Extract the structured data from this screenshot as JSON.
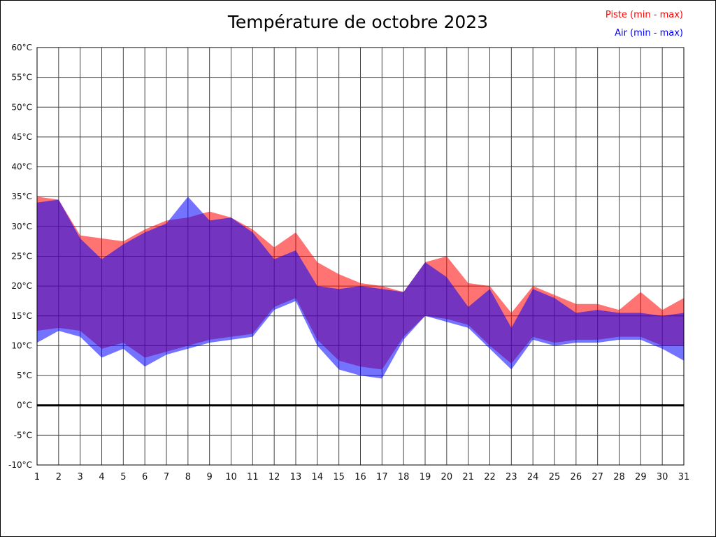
{
  "title": "Température de octobre 2023",
  "legend": {
    "piste_label": "Piste (min - max)",
    "air_label": "Air (min - max)",
    "piste_color": "#ff0000",
    "air_color": "#0000ff"
  },
  "chart_data": {
    "type": "area",
    "title": "Température de octobre 2023",
    "xlabel": "",
    "ylabel": "",
    "x": [
      1,
      2,
      3,
      4,
      5,
      6,
      7,
      8,
      9,
      10,
      11,
      12,
      13,
      14,
      15,
      16,
      17,
      18,
      19,
      20,
      21,
      22,
      23,
      24,
      25,
      26,
      27,
      28,
      29,
      30,
      31
    ],
    "ylim": [
      -10,
      60
    ],
    "y_tick_step": 5,
    "y_tick_suffix": "°C",
    "grid": true,
    "zero_line_at": 0,
    "legend_position": "top-right",
    "series": [
      {
        "name": "Piste (min - max)",
        "color": "#ff0000",
        "fill_opacity": 0.55,
        "min": [
          12.5,
          13,
          12.5,
          9.5,
          10.5,
          8,
          9,
          10,
          11,
          11.5,
          12,
          16.5,
          18,
          11,
          7.5,
          6.5,
          6,
          11.5,
          15,
          14.5,
          13.5,
          10,
          7,
          11.5,
          10.5,
          11,
          11,
          11.5,
          11.5,
          10,
          10
        ],
        "max": [
          35,
          34.5,
          28.5,
          28,
          27.5,
          29.5,
          31,
          31.5,
          32.5,
          31.5,
          29.5,
          26.5,
          29,
          24,
          22,
          20.5,
          20,
          19,
          24,
          25,
          20.5,
          20,
          15.5,
          20,
          18.5,
          17,
          17,
          16,
          19,
          16,
          18
        ]
      },
      {
        "name": "Air (min - max)",
        "color": "#0000ff",
        "fill_opacity": 0.55,
        "min": [
          10.5,
          12.5,
          11.5,
          8,
          9.5,
          6.5,
          8.5,
          9.5,
          10.5,
          11,
          11.5,
          16,
          17.5,
          10,
          6,
          5,
          4.5,
          11,
          15,
          14,
          13,
          9.5,
          6,
          11,
          10,
          10.5,
          10.5,
          11,
          11,
          9.5,
          7.5
        ],
        "max": [
          34,
          34.5,
          28,
          24.5,
          27,
          29,
          30.5,
          35,
          31,
          31.5,
          29,
          24.5,
          26,
          20,
          19.5,
          20,
          19.5,
          19,
          24,
          21.5,
          16.5,
          19.5,
          13,
          19.5,
          18,
          15.5,
          16,
          15.5,
          15.5,
          15,
          15.5
        ]
      }
    ]
  }
}
